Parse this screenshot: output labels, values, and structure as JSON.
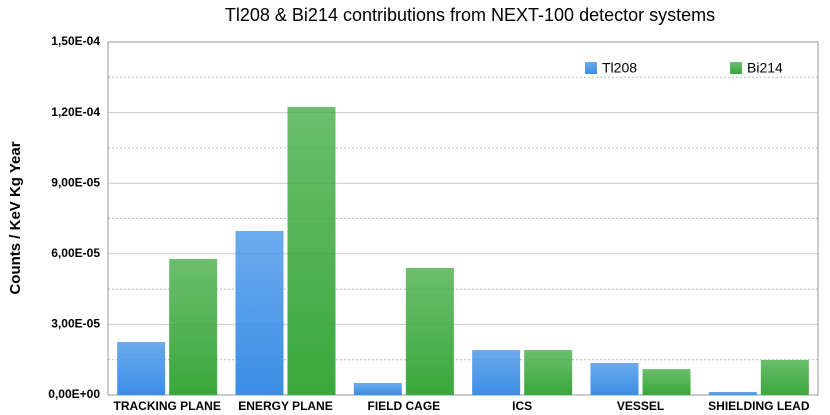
{
  "chart_data": {
    "type": "bar",
    "title": "Tl208 & Bi214 contributions from NEXT-100 detector systems",
    "ylabel": "Counts  /  KeV  Kg  Year",
    "categories": [
      "TRACKING PLANE",
      "ENERGY PLANE",
      "FIELD CAGE",
      "ICS",
      "VESSEL",
      "SHIELDING LEAD"
    ],
    "series": [
      {
        "name": "Tl208",
        "color": "#3b8ee6",
        "values": [
          2.25e-05,
          6.97e-05,
          5.1e-06,
          1.91e-05,
          1.36e-05,
          1.3e-06
        ]
      },
      {
        "name": "Bi214",
        "color": "#3aa83c",
        "values": [
          5.78e-05,
          0.0001224,
          5.4e-05,
          1.91e-05,
          1.1e-05,
          1.49e-05
        ]
      }
    ],
    "ylim": [
      0,
      0.00015
    ],
    "yticks": [
      {
        "value": 0,
        "label": "0,00E+00"
      },
      {
        "value": 3e-05,
        "label": "3,00E-05"
      },
      {
        "value": 6e-05,
        "label": "6,00E-05"
      },
      {
        "value": 9e-05,
        "label": "9,00E-05"
      },
      {
        "value": 0.00012,
        "label": "1,20E-04"
      },
      {
        "value": 0.00015,
        "label": "1,50E-04"
      }
    ],
    "yminorticks": [
      1.5e-05,
      4.5e-05,
      7.5e-05,
      0.000105,
      0.000135
    ],
    "grid": true,
    "legend": "top-right"
  }
}
